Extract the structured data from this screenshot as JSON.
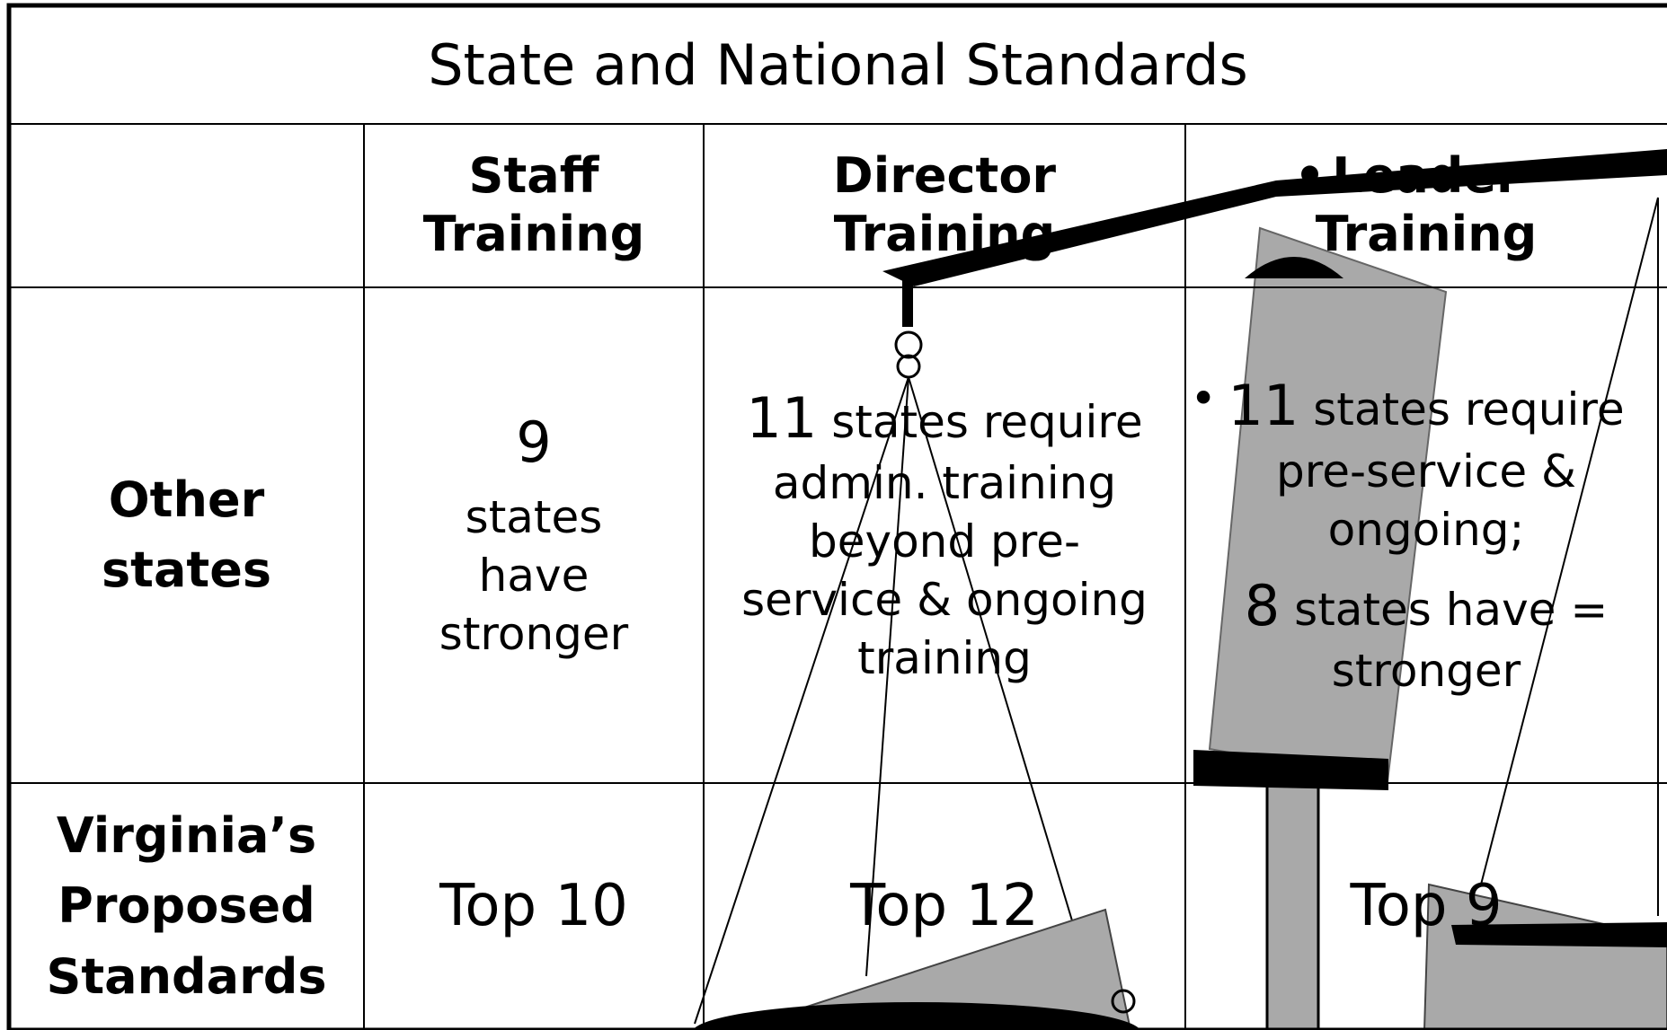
{
  "title": "State and National Standards",
  "table": {
    "header": [
      "Staff Training",
      "Director Training",
      "Leader Training"
    ],
    "rows": [
      {
        "label": "Other states",
        "cells": [
          [
            {
              "lead": "9",
              "text": "states have stronger"
            }
          ],
          [
            {
              "lead": "11",
              "text": "states require admin. training beyond pre-service & ongoing training"
            }
          ],
          [
            {
              "lead": "11",
              "text": "states require pre-service & ongoing;"
            },
            {
              "lead": "8",
              "text": "states have = stronger"
            }
          ]
        ]
      },
      {
        "label": "Virginia’s Proposed Standards",
        "cells": [
          [
            {
              "text": "Top 10"
            }
          ],
          [
            {
              "text": "Top 12"
            }
          ],
          [
            {
              "text": "Top 9"
            }
          ]
        ]
      }
    ]
  }
}
